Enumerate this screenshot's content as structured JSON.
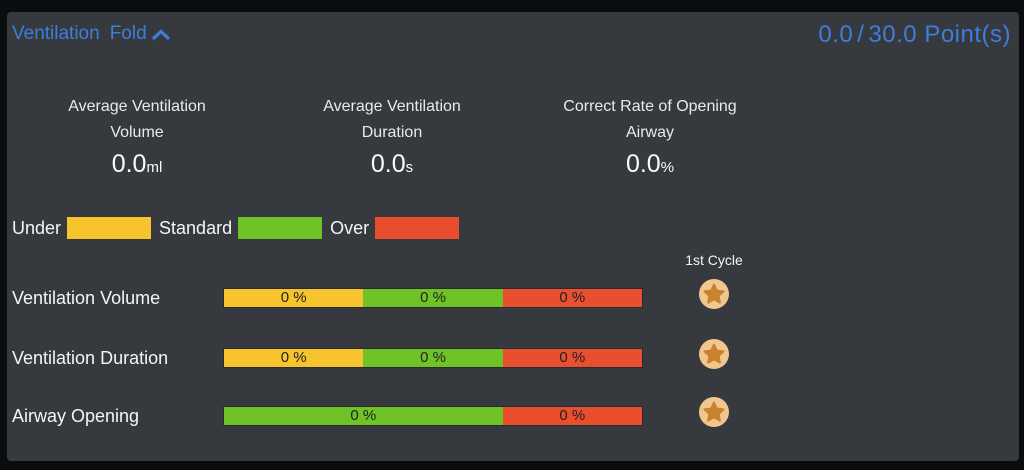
{
  "panel": {
    "title": "Ventilation",
    "fold": {
      "label": "Fold"
    },
    "score": {
      "current": "0.0",
      "separator": "/",
      "total": "30.0",
      "unit": "Point(s)"
    }
  },
  "stats": [
    {
      "title_line1": "Average Ventilation",
      "title_line2": "Volume",
      "value": "0.0",
      "unit": "ml"
    },
    {
      "title_line1": "Average Ventilation",
      "title_line2": "Duration",
      "value": "0.0",
      "unit": "s"
    },
    {
      "title_line1": "Correct Rate of Opening",
      "title_line2": "Airway",
      "value": "0.0",
      "unit": "%"
    }
  ],
  "legend": {
    "items": [
      {
        "label": "Under",
        "color": "#f7c42d"
      },
      {
        "label": "Standard",
        "color": "#6fc327"
      },
      {
        "label": "Over",
        "color": "#e94f2e"
      }
    ]
  },
  "cycle_header": "1st Cycle",
  "bars": {
    "rows": [
      {
        "label": "Ventilation Volume",
        "segments": [
          {
            "name": "under",
            "value": "0 %",
            "color": "#f7c42d",
            "width_pct": 33.333
          },
          {
            "name": "standard",
            "value": "0 %",
            "color": "#6fc327",
            "width_pct": 33.333
          },
          {
            "name": "over",
            "value": "0 %",
            "color": "#e94f2e",
            "width_pct": 33.334
          }
        ]
      },
      {
        "label": "Ventilation Duration",
        "segments": [
          {
            "name": "under",
            "value": "0 %",
            "color": "#f7c42d",
            "width_pct": 33.333
          },
          {
            "name": "standard",
            "value": "0 %",
            "color": "#6fc327",
            "width_pct": 33.333
          },
          {
            "name": "over",
            "value": "0 %",
            "color": "#e94f2e",
            "width_pct": 33.334
          }
        ]
      },
      {
        "label": "Airway Opening",
        "segments": [
          {
            "name": "standard",
            "value": "0 %",
            "color": "#6fc327",
            "width_pct": 66.667
          },
          {
            "name": "over",
            "value": "0 %",
            "color": "#e94f2e",
            "width_pct": 33.333
          }
        ]
      }
    ]
  },
  "colors": {
    "accent_blue": "#3d7edb",
    "panel_bg": "#36393e",
    "frame_bg": "#0a0c0f",
    "badge_bg": "#f2c68f",
    "badge_star": "#c7832d",
    "text_light": "#f5f5f5",
    "bar_text": "#222222"
  }
}
